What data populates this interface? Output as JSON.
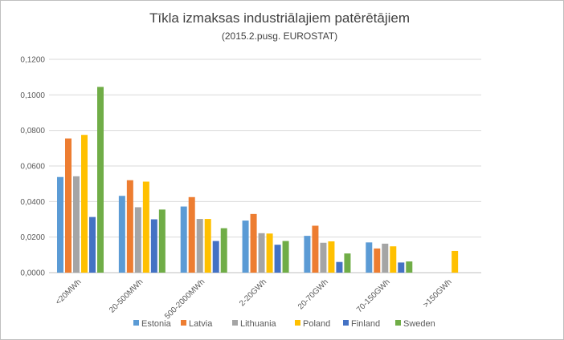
{
  "chart_data": {
    "type": "bar",
    "title": "Tīkla izmaksas industriālajiem patērētājiem",
    "subtitle": "(2015.2.pusg. EUROSTAT)",
    "xlabel": "",
    "ylabel": "",
    "categories": [
      "<20MWh",
      "20-500MWh",
      "500-2000MWh",
      "2-20GWh",
      "20-70GWh",
      "70-150GWh",
      ">150GWh"
    ],
    "ylim": [
      0,
      0.12
    ],
    "yticks": [
      0,
      0.02,
      0.04,
      0.06,
      0.08,
      0.1,
      0.12
    ],
    "ytick_labels": [
      "0,0000",
      "0,0200",
      "0,0400",
      "0,0600",
      "0,0800",
      "0,1000",
      "0,1200"
    ],
    "grid": true,
    "legend_position": "bottom",
    "series": [
      {
        "name": "Estonia",
        "color": "#5B9BD5",
        "values": [
          0.0538,
          0.0432,
          0.0372,
          0.0293,
          0.0207,
          0.017,
          null
        ]
      },
      {
        "name": "Latvia",
        "color": "#ED7D31",
        "values": [
          0.0755,
          0.052,
          0.0425,
          0.033,
          0.0264,
          0.0136,
          null
        ]
      },
      {
        "name": "Lithuania",
        "color": "#A5A5A5",
        "values": [
          0.0542,
          0.0368,
          0.0302,
          0.0222,
          0.0168,
          0.0163,
          null
        ]
      },
      {
        "name": "Poland",
        "color": "#FFC000",
        "values": [
          0.0775,
          0.0512,
          0.0302,
          0.022,
          0.0176,
          0.0148,
          0.0122
        ]
      },
      {
        "name": "Finland",
        "color": "#4472C4",
        "values": [
          0.0313,
          0.03,
          0.0178,
          0.0157,
          0.006,
          0.0057,
          null
        ]
      },
      {
        "name": "Sweden",
        "color": "#70AD47",
        "values": [
          0.1045,
          0.0355,
          0.025,
          0.0178,
          0.0108,
          0.0063,
          null
        ]
      }
    ]
  }
}
